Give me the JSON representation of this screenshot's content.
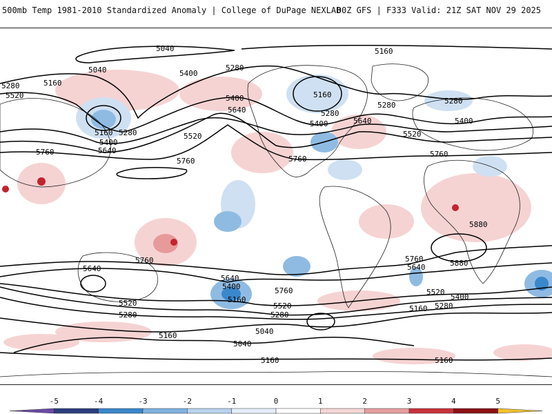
{
  "header": {
    "title_left": "500mb Temp 1981-2010 Standardized Anomaly | College of DuPage NEXLAB",
    "title_right": "00Z GFS | F333 Valid: 21Z SAT NOV 29 2025"
  },
  "colors": {
    "contour": "#000000",
    "coast": "#222222",
    "warm_light": "#f6d3d3",
    "warm_mid": "#e79a9a",
    "warm_strong": "#c4232c",
    "cold_light": "#cfe0f2",
    "cold_mid": "#8fbbe3",
    "cold_strong": "#3a87cb"
  },
  "contour_labels": [
    "5040",
    "5160",
    "5280",
    "5400",
    "5520",
    "5640",
    "5760",
    "5880"
  ],
  "colorbar": {
    "ticks": [
      "-5",
      "-4",
      "-3",
      "-2",
      "-1",
      "0",
      "1",
      "2",
      "3",
      "4",
      "5"
    ],
    "colors": [
      "#6a4aa8",
      "#2b3d7a",
      "#3a87cb",
      "#7fb2e0",
      "#b9d3ee",
      "#e4edf8",
      "#ffffff",
      "#f5d5d5",
      "#e59e9e",
      "#c8323a",
      "#8c1014",
      "#f2c230"
    ]
  }
}
